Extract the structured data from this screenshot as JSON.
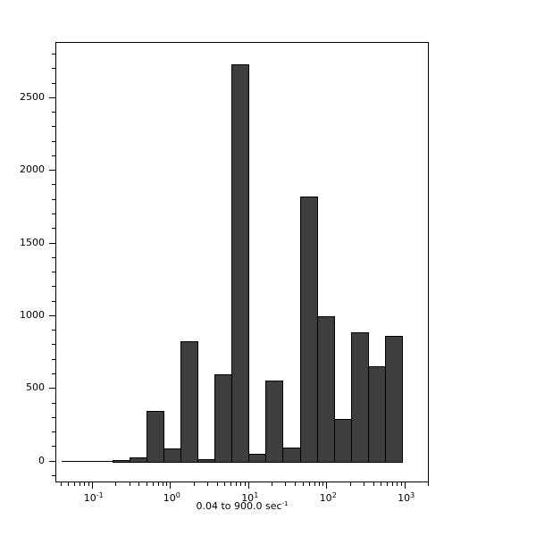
{
  "chart_data": {
    "type": "histogram",
    "xscale": "log",
    "yscale": "linear",
    "title": "",
    "ylabel": "",
    "xlabel_text": "0.04 to 900.0 sec",
    "xlabel_sup": "-1",
    "grid": false,
    "legend": null,
    "n_bins": 20,
    "x_range": [
      0.04,
      900.0
    ],
    "bin_edges": [
      0.04,
      0.066,
      0.109,
      0.18,
      0.297,
      0.49,
      0.809,
      1.335,
      2.204,
      3.638,
      6.005,
      9.911,
      16.36,
      27.0,
      44.57,
      73.57,
      121.4,
      200.4,
      330.9,
      546.1,
      900.0
    ],
    "counts": [
      0,
      0,
      0,
      10,
      30,
      350,
      90,
      825,
      15,
      600,
      2735,
      55,
      555,
      95,
      1825,
      1000,
      295,
      890,
      655,
      865
    ],
    "xlim": [
      0.0342,
      2050
    ],
    "ylim": [
      -150,
      2880
    ],
    "y_major_ticks": [
      0,
      500,
      1000,
      1500,
      2000,
      2500
    ],
    "y_major_tick_labels": [
      "0",
      "500",
      "1000",
      "1500",
      "2000",
      "2500"
    ],
    "y_minor_step": 100,
    "x_major_ticks": [
      {
        "label": "10",
        "exp": "-1",
        "value": 0.1
      },
      {
        "label": "10",
        "exp": "0",
        "value": 1
      },
      {
        "label": "10",
        "exp": "1",
        "value": 10
      },
      {
        "label": "10",
        "exp": "2",
        "value": 100
      },
      {
        "label": "10",
        "exp": "3",
        "value": 1000
      }
    ],
    "x_minor_decades": [
      -2,
      -1,
      0,
      1,
      2,
      3
    ],
    "colors": {
      "bar_fill": "#3e3e3e",
      "bar_edge": "#000000",
      "axis": "#000000",
      "text": "#000000",
      "background": "#ffffff"
    }
  }
}
